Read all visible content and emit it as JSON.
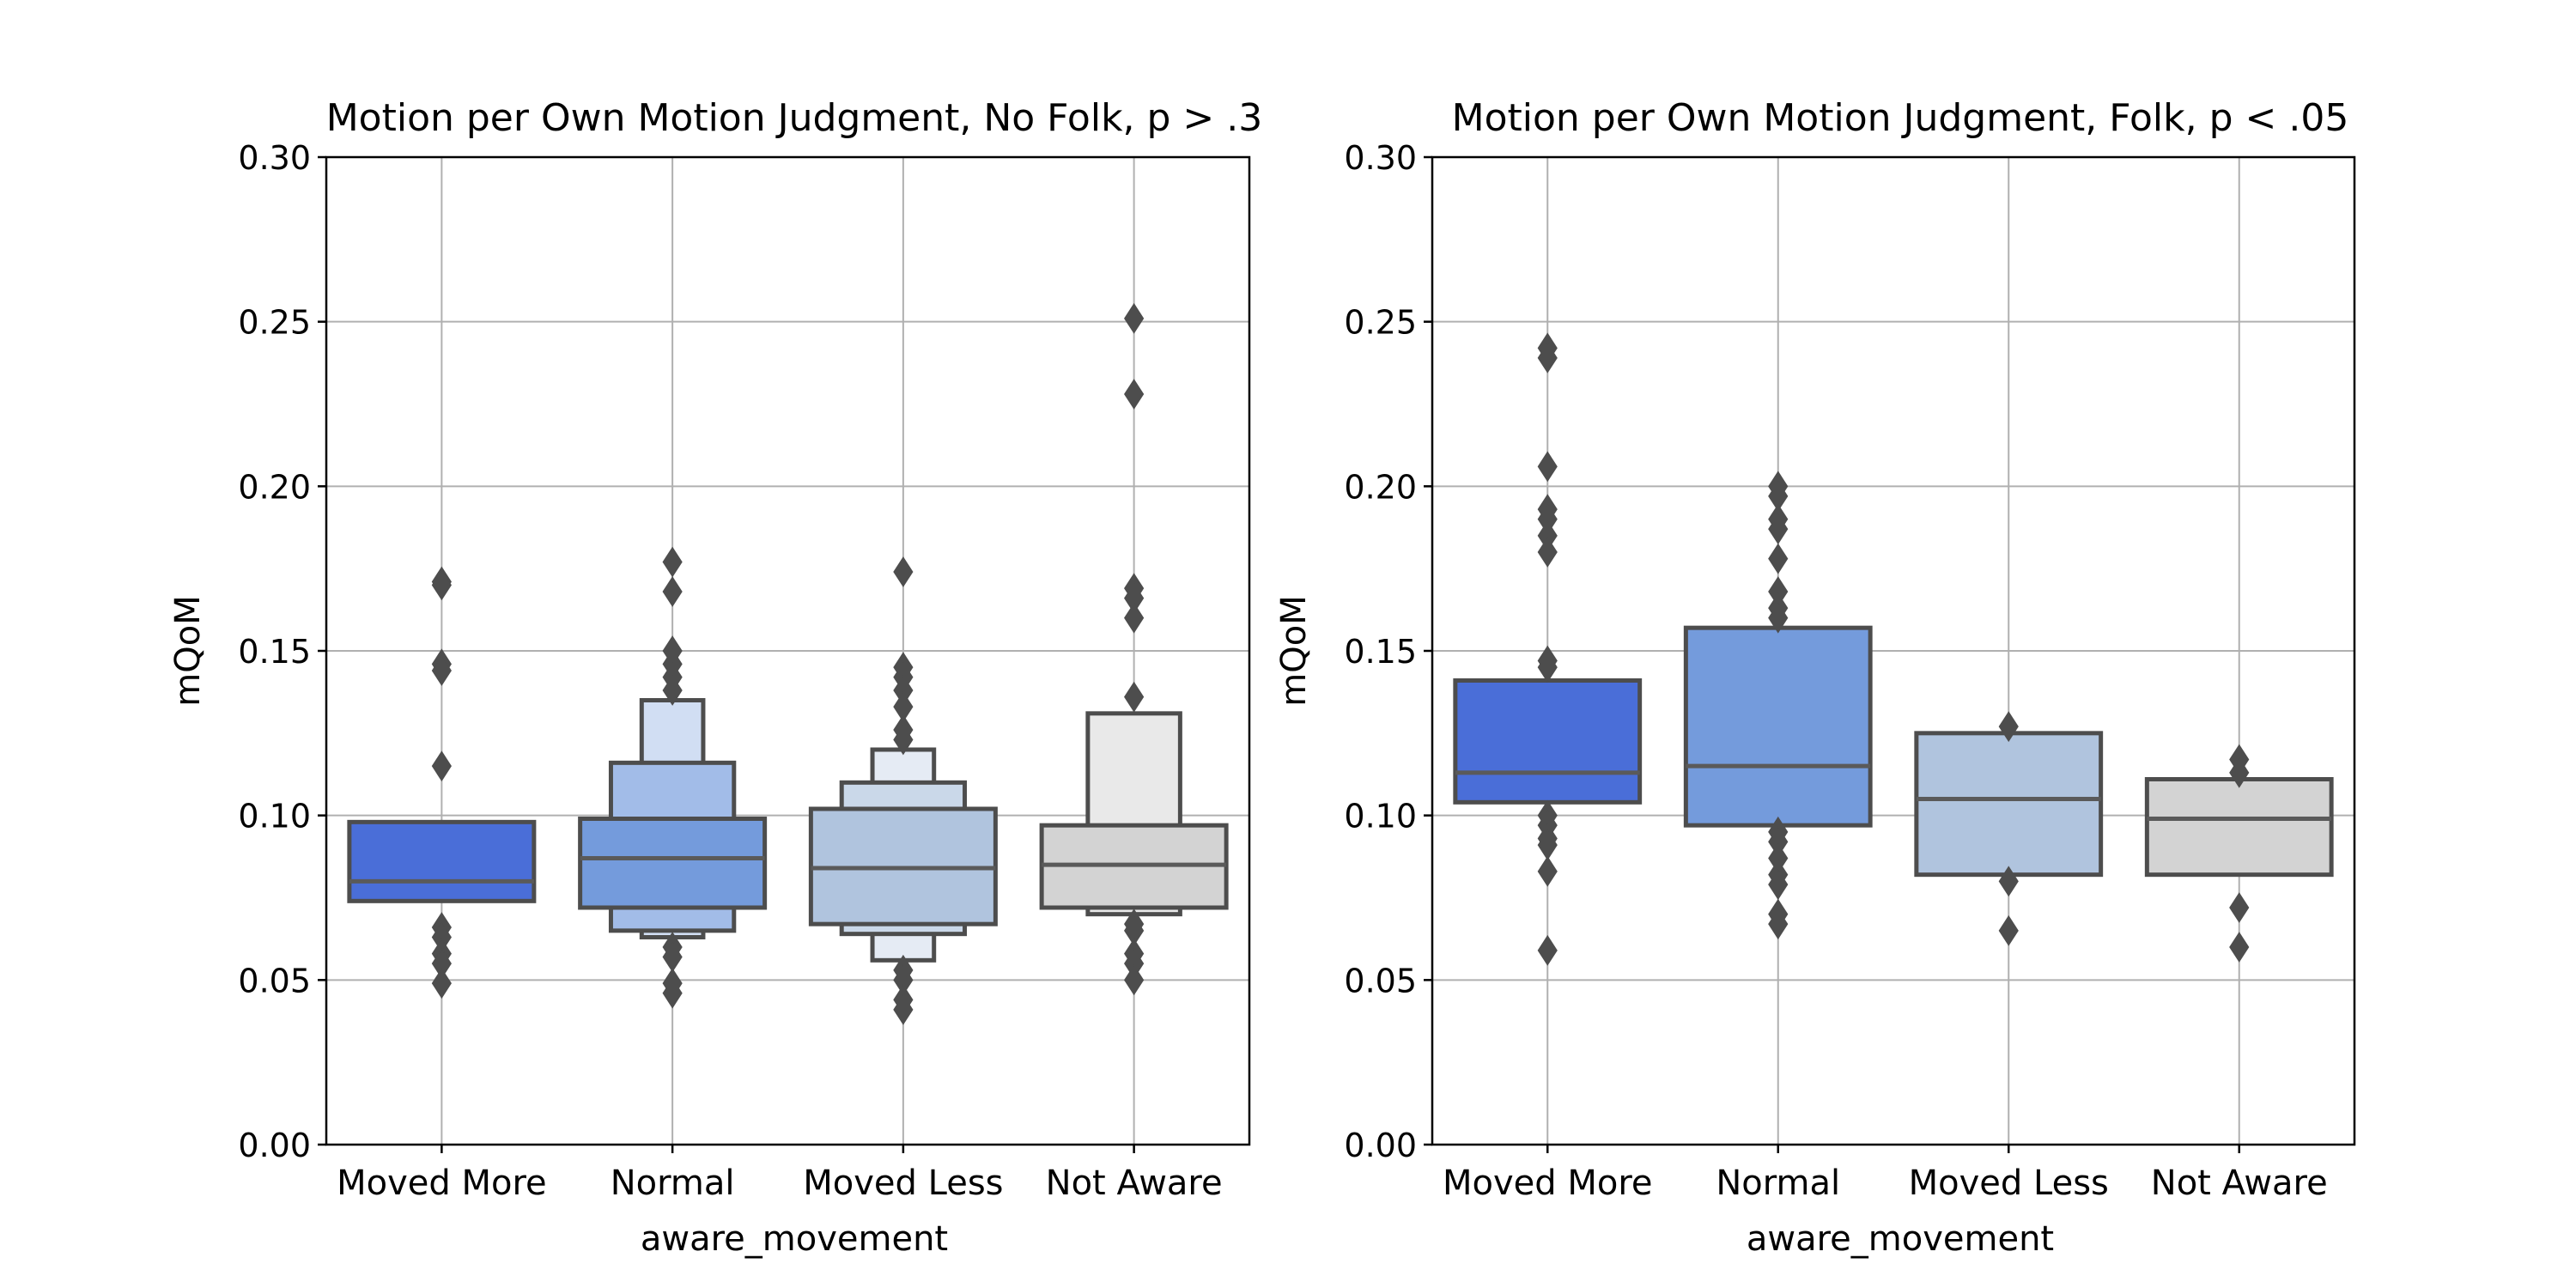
{
  "chart_data": [
    {
      "type": "boxen",
      "title": "Motion per Own Motion Judgment, No Folk, p > .3",
      "xlabel": "aware_movement",
      "ylabel": "mQoM",
      "ylim": [
        0,
        0.3
      ],
      "yticks": [
        "0.00",
        "0.05",
        "0.10",
        "0.15",
        "0.20",
        "0.25",
        "0.30"
      ],
      "grid": true,
      "categories": [
        "Moved More",
        "Normal",
        "Moved Less",
        "Not Aware"
      ],
      "series": [
        {
          "category": "Moved More",
          "color": "#4a6ed8",
          "median": 0.08,
          "levels": [
            {
              "low": 0.074,
              "high": 0.098
            }
          ],
          "outliers": [
            0.171,
            0.17,
            0.146,
            0.144,
            0.115,
            0.066,
            0.063,
            0.058,
            0.055,
            0.049
          ]
        },
        {
          "category": "Normal",
          "color": "#749bdc",
          "median": 0.087,
          "levels": [
            {
              "low": 0.072,
              "high": 0.099
            },
            {
              "low": 0.065,
              "high": 0.116
            },
            {
              "low": 0.063,
              "high": 0.135
            }
          ],
          "outliers": [
            0.177,
            0.168,
            0.15,
            0.146,
            0.142,
            0.138,
            0.06,
            0.057,
            0.049,
            0.046
          ]
        },
        {
          "category": "Moved Less",
          "color": "#b0c4de",
          "median": 0.084,
          "levels": [
            {
              "low": 0.067,
              "high": 0.102
            },
            {
              "low": 0.064,
              "high": 0.11
            },
            {
              "low": 0.056,
              "high": 0.12
            }
          ],
          "outliers": [
            0.174,
            0.145,
            0.142,
            0.138,
            0.133,
            0.126,
            0.123,
            0.053,
            0.05,
            0.044,
            0.041
          ]
        },
        {
          "category": "Not Aware",
          "color": "#d3d3d3",
          "median": 0.085,
          "levels": [
            {
              "low": 0.072,
              "high": 0.097
            },
            {
              "low": 0.07,
              "high": 0.131
            }
          ],
          "outliers": [
            0.251,
            0.228,
            0.169,
            0.166,
            0.16,
            0.136,
            0.067,
            0.065,
            0.058,
            0.055,
            0.05
          ]
        }
      ]
    },
    {
      "type": "boxen",
      "title": "Motion per Own Motion Judgment, Folk, p < .05",
      "xlabel": "aware_movement",
      "ylabel": "mQoM",
      "ylim": [
        0,
        0.3
      ],
      "yticks": [
        "0.00",
        "0.05",
        "0.10",
        "0.15",
        "0.20",
        "0.25",
        "0.30"
      ],
      "grid": true,
      "categories": [
        "Moved More",
        "Normal",
        "Moved Less",
        "Not Aware"
      ],
      "series": [
        {
          "category": "Moved More",
          "color": "#4a6ed8",
          "median": 0.113,
          "levels": [
            {
              "low": 0.104,
              "high": 0.141
            }
          ],
          "outliers": [
            0.242,
            0.239,
            0.206,
            0.193,
            0.19,
            0.185,
            0.18,
            0.147,
            0.145,
            0.1,
            0.097,
            0.093,
            0.091,
            0.083,
            0.059
          ]
        },
        {
          "category": "Normal",
          "color": "#749bdc",
          "median": 0.115,
          "levels": [
            {
              "low": 0.097,
              "high": 0.157
            }
          ],
          "outliers": [
            0.2,
            0.197,
            0.19,
            0.187,
            0.178,
            0.168,
            0.163,
            0.16,
            0.095,
            0.092,
            0.087,
            0.082,
            0.079,
            0.07,
            0.067
          ]
        },
        {
          "category": "Moved Less",
          "color": "#b0c4de",
          "median": 0.105,
          "levels": [
            {
              "low": 0.082,
              "high": 0.125
            }
          ],
          "outliers": [
            0.127,
            0.08,
            0.065
          ]
        },
        {
          "category": "Not Aware",
          "color": "#d3d3d3",
          "median": 0.099,
          "levels": [
            {
              "low": 0.082,
              "high": 0.111
            }
          ],
          "outliers": [
            0.117,
            0.113,
            0.072,
            0.06
          ]
        }
      ]
    }
  ]
}
